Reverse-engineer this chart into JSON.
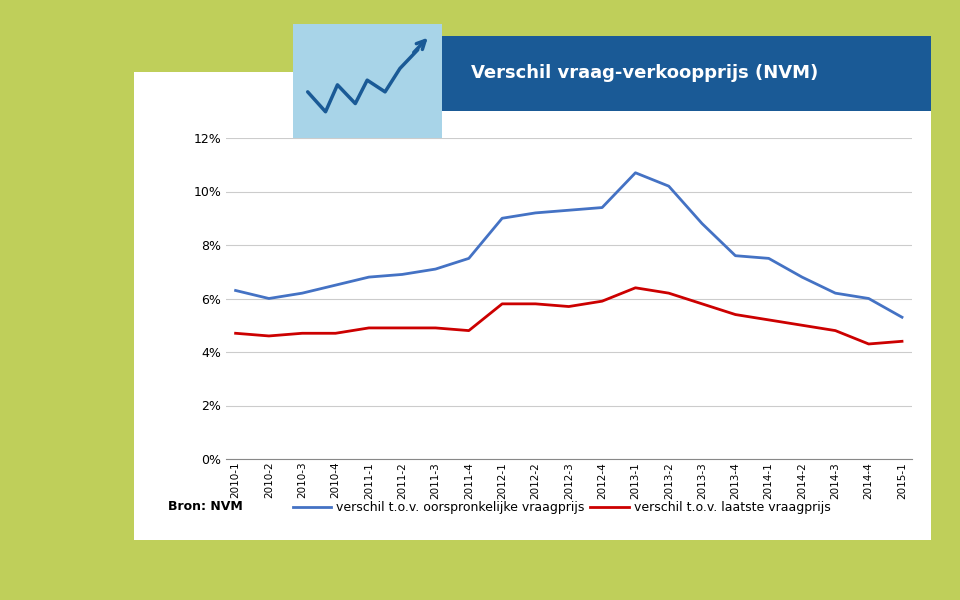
{
  "title": "Verschil vraag-verkoopprijs (NVM)",
  "source_label": "Bron: NVM",
  "legend1": "verschil t.o.v. oorspronkelijke vraagprijs",
  "legend2": "verschil t.o.v. laatste vraagprijs",
  "categories": [
    "2010-1",
    "2010-2",
    "2010-3",
    "2010-4",
    "2011-1",
    "2011-2",
    "2011-3",
    "2011-4",
    "2012-1",
    "2012-2",
    "2012-3",
    "2012-4",
    "2013-1",
    "2013-2",
    "2013-3",
    "2013-4",
    "2014-1",
    "2014-2",
    "2014-3",
    "2014-4",
    "2015-1"
  ],
  "blue_values": [
    6.3,
    6.0,
    6.2,
    6.5,
    6.8,
    6.9,
    7.1,
    7.5,
    9.0,
    9.2,
    9.3,
    9.4,
    10.7,
    10.2,
    8.8,
    7.6,
    7.5,
    6.8,
    6.2,
    6.0,
    5.3
  ],
  "red_values": [
    4.7,
    4.6,
    4.7,
    4.7,
    4.9,
    4.9,
    4.9,
    4.8,
    5.8,
    5.8,
    5.7,
    5.9,
    6.4,
    6.2,
    5.8,
    5.4,
    5.2,
    5.0,
    4.8,
    4.3,
    4.4
  ],
  "blue_color": "#4472C4",
  "red_color": "#CC0000",
  "ylim": [
    0,
    12
  ],
  "yticks": [
    0,
    2,
    4,
    6,
    8,
    10,
    12
  ],
  "ytick_labels": [
    "0%",
    "2%",
    "4%",
    "6%",
    "8%",
    "10%",
    "12%"
  ],
  "bg_outer": "#bfcf5a",
  "bg_white": "#ffffff",
  "header_bg": "#1a5a96",
  "header_text_color": "#ffffff",
  "icon_bg": "#a8d4e8",
  "grid_color": "#cccccc"
}
